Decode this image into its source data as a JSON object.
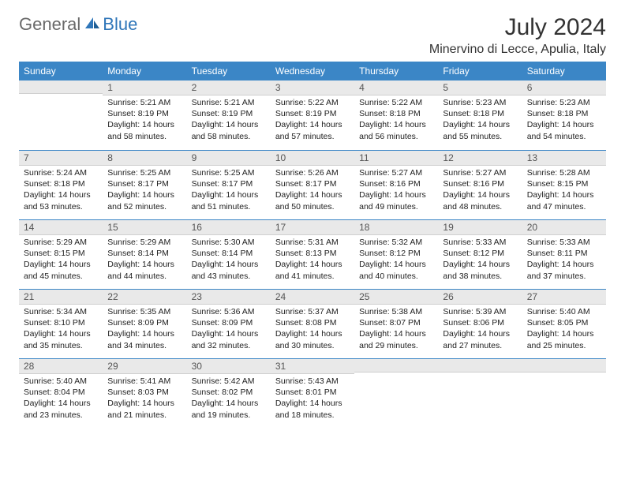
{
  "brand": {
    "general": "General",
    "blue": "Blue"
  },
  "title": "July 2024",
  "location": "Minervino di Lecce, Apulia, Italy",
  "colors": {
    "header_bg": "#3b86c6",
    "header_text": "#ffffff",
    "daynum_bg": "#e9e9e9",
    "week_divider": "#3b86c6",
    "text": "#222222",
    "logo_gray": "#6a6a6a",
    "logo_blue": "#2f76b9",
    "page_bg": "#ffffff"
  },
  "day_headers": [
    "Sunday",
    "Monday",
    "Tuesday",
    "Wednesday",
    "Thursday",
    "Friday",
    "Saturday"
  ],
  "weeks": [
    [
      {
        "n": "",
        "sr": "",
        "ss": "",
        "dl": ""
      },
      {
        "n": "1",
        "sr": "Sunrise: 5:21 AM",
        "ss": "Sunset: 8:19 PM",
        "dl": "Daylight: 14 hours and 58 minutes."
      },
      {
        "n": "2",
        "sr": "Sunrise: 5:21 AM",
        "ss": "Sunset: 8:19 PM",
        "dl": "Daylight: 14 hours and 58 minutes."
      },
      {
        "n": "3",
        "sr": "Sunrise: 5:22 AM",
        "ss": "Sunset: 8:19 PM",
        "dl": "Daylight: 14 hours and 57 minutes."
      },
      {
        "n": "4",
        "sr": "Sunrise: 5:22 AM",
        "ss": "Sunset: 8:18 PM",
        "dl": "Daylight: 14 hours and 56 minutes."
      },
      {
        "n": "5",
        "sr": "Sunrise: 5:23 AM",
        "ss": "Sunset: 8:18 PM",
        "dl": "Daylight: 14 hours and 55 minutes."
      },
      {
        "n": "6",
        "sr": "Sunrise: 5:23 AM",
        "ss": "Sunset: 8:18 PM",
        "dl": "Daylight: 14 hours and 54 minutes."
      }
    ],
    [
      {
        "n": "7",
        "sr": "Sunrise: 5:24 AM",
        "ss": "Sunset: 8:18 PM",
        "dl": "Daylight: 14 hours and 53 minutes."
      },
      {
        "n": "8",
        "sr": "Sunrise: 5:25 AM",
        "ss": "Sunset: 8:17 PM",
        "dl": "Daylight: 14 hours and 52 minutes."
      },
      {
        "n": "9",
        "sr": "Sunrise: 5:25 AM",
        "ss": "Sunset: 8:17 PM",
        "dl": "Daylight: 14 hours and 51 minutes."
      },
      {
        "n": "10",
        "sr": "Sunrise: 5:26 AM",
        "ss": "Sunset: 8:17 PM",
        "dl": "Daylight: 14 hours and 50 minutes."
      },
      {
        "n": "11",
        "sr": "Sunrise: 5:27 AM",
        "ss": "Sunset: 8:16 PM",
        "dl": "Daylight: 14 hours and 49 minutes."
      },
      {
        "n": "12",
        "sr": "Sunrise: 5:27 AM",
        "ss": "Sunset: 8:16 PM",
        "dl": "Daylight: 14 hours and 48 minutes."
      },
      {
        "n": "13",
        "sr": "Sunrise: 5:28 AM",
        "ss": "Sunset: 8:15 PM",
        "dl": "Daylight: 14 hours and 47 minutes."
      }
    ],
    [
      {
        "n": "14",
        "sr": "Sunrise: 5:29 AM",
        "ss": "Sunset: 8:15 PM",
        "dl": "Daylight: 14 hours and 45 minutes."
      },
      {
        "n": "15",
        "sr": "Sunrise: 5:29 AM",
        "ss": "Sunset: 8:14 PM",
        "dl": "Daylight: 14 hours and 44 minutes."
      },
      {
        "n": "16",
        "sr": "Sunrise: 5:30 AM",
        "ss": "Sunset: 8:14 PM",
        "dl": "Daylight: 14 hours and 43 minutes."
      },
      {
        "n": "17",
        "sr": "Sunrise: 5:31 AM",
        "ss": "Sunset: 8:13 PM",
        "dl": "Daylight: 14 hours and 41 minutes."
      },
      {
        "n": "18",
        "sr": "Sunrise: 5:32 AM",
        "ss": "Sunset: 8:12 PM",
        "dl": "Daylight: 14 hours and 40 minutes."
      },
      {
        "n": "19",
        "sr": "Sunrise: 5:33 AM",
        "ss": "Sunset: 8:12 PM",
        "dl": "Daylight: 14 hours and 38 minutes."
      },
      {
        "n": "20",
        "sr": "Sunrise: 5:33 AM",
        "ss": "Sunset: 8:11 PM",
        "dl": "Daylight: 14 hours and 37 minutes."
      }
    ],
    [
      {
        "n": "21",
        "sr": "Sunrise: 5:34 AM",
        "ss": "Sunset: 8:10 PM",
        "dl": "Daylight: 14 hours and 35 minutes."
      },
      {
        "n": "22",
        "sr": "Sunrise: 5:35 AM",
        "ss": "Sunset: 8:09 PM",
        "dl": "Daylight: 14 hours and 34 minutes."
      },
      {
        "n": "23",
        "sr": "Sunrise: 5:36 AM",
        "ss": "Sunset: 8:09 PM",
        "dl": "Daylight: 14 hours and 32 minutes."
      },
      {
        "n": "24",
        "sr": "Sunrise: 5:37 AM",
        "ss": "Sunset: 8:08 PM",
        "dl": "Daylight: 14 hours and 30 minutes."
      },
      {
        "n": "25",
        "sr": "Sunrise: 5:38 AM",
        "ss": "Sunset: 8:07 PM",
        "dl": "Daylight: 14 hours and 29 minutes."
      },
      {
        "n": "26",
        "sr": "Sunrise: 5:39 AM",
        "ss": "Sunset: 8:06 PM",
        "dl": "Daylight: 14 hours and 27 minutes."
      },
      {
        "n": "27",
        "sr": "Sunrise: 5:40 AM",
        "ss": "Sunset: 8:05 PM",
        "dl": "Daylight: 14 hours and 25 minutes."
      }
    ],
    [
      {
        "n": "28",
        "sr": "Sunrise: 5:40 AM",
        "ss": "Sunset: 8:04 PM",
        "dl": "Daylight: 14 hours and 23 minutes."
      },
      {
        "n": "29",
        "sr": "Sunrise: 5:41 AM",
        "ss": "Sunset: 8:03 PM",
        "dl": "Daylight: 14 hours and 21 minutes."
      },
      {
        "n": "30",
        "sr": "Sunrise: 5:42 AM",
        "ss": "Sunset: 8:02 PM",
        "dl": "Daylight: 14 hours and 19 minutes."
      },
      {
        "n": "31",
        "sr": "Sunrise: 5:43 AM",
        "ss": "Sunset: 8:01 PM",
        "dl": "Daylight: 14 hours and 18 minutes."
      },
      {
        "n": "",
        "sr": "",
        "ss": "",
        "dl": ""
      },
      {
        "n": "",
        "sr": "",
        "ss": "",
        "dl": ""
      },
      {
        "n": "",
        "sr": "",
        "ss": "",
        "dl": ""
      }
    ]
  ]
}
